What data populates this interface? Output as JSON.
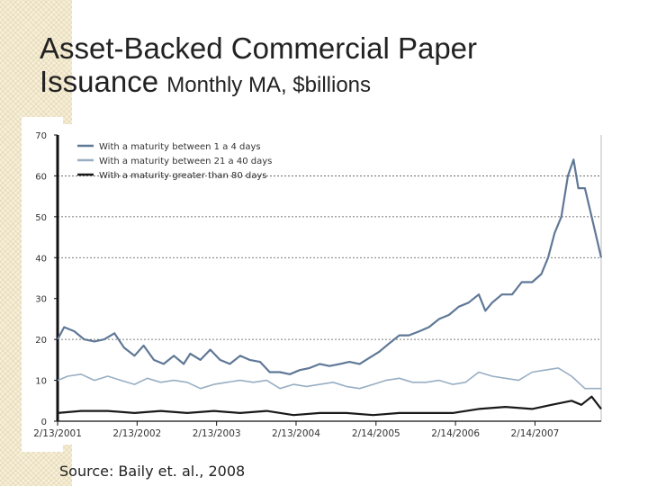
{
  "slide": {
    "title_line1": "Asset-Backed Commercial Paper",
    "title_line2_big": "Issuance",
    "title_line2_small": "Monthly MA, $billions",
    "source": "Source: Baily et. al., 2008"
  },
  "chart_data": {
    "type": "line",
    "title": "",
    "xlabel": "",
    "ylabel": "",
    "ylim": [
      0,
      70
    ],
    "yticks": [
      0,
      10,
      20,
      30,
      40,
      50,
      60,
      70
    ],
    "xlim": [
      "2001-02-13",
      "2007-12-15"
    ],
    "xticks": [
      {
        "date": "2001-02-13",
        "label": "2/13/2001"
      },
      {
        "date": "2002-02-13",
        "label": "2/13/2002"
      },
      {
        "date": "2003-02-13",
        "label": "2/13/2003"
      },
      {
        "date": "2004-02-13",
        "label": "2/13/2004"
      },
      {
        "date": "2005-02-14",
        "label": "2/14/2005"
      },
      {
        "date": "2006-02-14",
        "label": "2/14/2006"
      },
      {
        "date": "2007-02-14",
        "label": "2/14/2007"
      }
    ],
    "grid": {
      "dashed_y_at": [
        20,
        40,
        50,
        60
      ]
    },
    "legend_position": "top-left",
    "series": [
      {
        "name": "With a maturity between 1 a 4 days",
        "color": "#5f7896",
        "points": [
          [
            "2001-02-13",
            20
          ],
          [
            "2001-03-15",
            23
          ],
          [
            "2001-05-01",
            22
          ],
          [
            "2001-06-15",
            20
          ],
          [
            "2001-08-01",
            19.5
          ],
          [
            "2001-09-15",
            20
          ],
          [
            "2001-11-01",
            21.5
          ],
          [
            "2001-12-15",
            18
          ],
          [
            "2002-02-01",
            16
          ],
          [
            "2002-03-15",
            18.5
          ],
          [
            "2002-05-01",
            15
          ],
          [
            "2002-06-15",
            14
          ],
          [
            "2002-08-01",
            16
          ],
          [
            "2002-09-15",
            14
          ],
          [
            "2002-10-15",
            16.5
          ],
          [
            "2002-12-01",
            15
          ],
          [
            "2003-01-15",
            17.5
          ],
          [
            "2003-03-01",
            15
          ],
          [
            "2003-04-15",
            14
          ],
          [
            "2003-06-01",
            16
          ],
          [
            "2003-07-15",
            15
          ],
          [
            "2003-09-01",
            14.5
          ],
          [
            "2003-10-15",
            12
          ],
          [
            "2003-12-01",
            12
          ],
          [
            "2004-01-15",
            11.5
          ],
          [
            "2004-03-01",
            12.5
          ],
          [
            "2004-04-15",
            13
          ],
          [
            "2004-06-01",
            14
          ],
          [
            "2004-07-15",
            13.5
          ],
          [
            "2004-09-01",
            14
          ],
          [
            "2004-10-15",
            14.5
          ],
          [
            "2004-12-01",
            14
          ],
          [
            "2005-01-15",
            15.5
          ],
          [
            "2005-03-01",
            17
          ],
          [
            "2005-04-15",
            19
          ],
          [
            "2005-06-01",
            21
          ],
          [
            "2005-07-15",
            21
          ],
          [
            "2005-09-01",
            22
          ],
          [
            "2005-10-15",
            23
          ],
          [
            "2005-12-01",
            25
          ],
          [
            "2006-01-15",
            26
          ],
          [
            "2006-03-01",
            28
          ],
          [
            "2006-04-15",
            29
          ],
          [
            "2006-06-01",
            31
          ],
          [
            "2006-07-01",
            27
          ],
          [
            "2006-08-01",
            29
          ],
          [
            "2006-09-15",
            31
          ],
          [
            "2006-11-01",
            31
          ],
          [
            "2006-12-15",
            34
          ],
          [
            "2007-02-01",
            34
          ],
          [
            "2007-03-15",
            36
          ],
          [
            "2007-04-15",
            40
          ],
          [
            "2007-05-15",
            46
          ],
          [
            "2007-06-15",
            50
          ],
          [
            "2007-07-15",
            60
          ],
          [
            "2007-08-10",
            64
          ],
          [
            "2007-09-01",
            57
          ],
          [
            "2007-10-01",
            57
          ],
          [
            "2007-11-01",
            50
          ],
          [
            "2007-12-15",
            40
          ]
        ]
      },
      {
        "name": "With a maturity between 21 a 40 days",
        "color": "#98aec3",
        "points": [
          [
            "2001-02-13",
            10
          ],
          [
            "2001-04-01",
            11
          ],
          [
            "2001-06-01",
            11.5
          ],
          [
            "2001-08-01",
            10
          ],
          [
            "2001-10-01",
            11
          ],
          [
            "2001-12-01",
            10
          ],
          [
            "2002-02-01",
            9
          ],
          [
            "2002-04-01",
            10.5
          ],
          [
            "2002-06-01",
            9.5
          ],
          [
            "2002-08-01",
            10
          ],
          [
            "2002-10-01",
            9.5
          ],
          [
            "2002-12-01",
            8
          ],
          [
            "2003-02-01",
            9
          ],
          [
            "2003-04-01",
            9.5
          ],
          [
            "2003-06-01",
            10
          ],
          [
            "2003-08-01",
            9.5
          ],
          [
            "2003-10-01",
            10
          ],
          [
            "2003-12-01",
            8
          ],
          [
            "2004-02-01",
            9
          ],
          [
            "2004-04-01",
            8.5
          ],
          [
            "2004-06-01",
            9
          ],
          [
            "2004-08-01",
            9.5
          ],
          [
            "2004-10-01",
            8.5
          ],
          [
            "2004-12-01",
            8
          ],
          [
            "2005-02-01",
            9
          ],
          [
            "2005-04-01",
            10
          ],
          [
            "2005-06-01",
            10.5
          ],
          [
            "2005-08-01",
            9.5
          ],
          [
            "2005-10-01",
            9.5
          ],
          [
            "2005-12-01",
            10
          ],
          [
            "2006-02-01",
            9
          ],
          [
            "2006-04-01",
            9.5
          ],
          [
            "2006-06-01",
            12
          ],
          [
            "2006-08-01",
            11
          ],
          [
            "2006-10-01",
            10.5
          ],
          [
            "2006-12-01",
            10
          ],
          [
            "2007-02-01",
            12
          ],
          [
            "2007-04-01",
            12.5
          ],
          [
            "2007-06-01",
            13
          ],
          [
            "2007-08-01",
            11
          ],
          [
            "2007-10-01",
            8
          ],
          [
            "2007-12-15",
            8
          ]
        ]
      },
      {
        "name": "With a maturity greater than 80 days",
        "color": "#1a1a1a",
        "points": [
          [
            "2001-02-13",
            2
          ],
          [
            "2001-06-01",
            2.5
          ],
          [
            "2001-10-01",
            2.5
          ],
          [
            "2002-02-01",
            2
          ],
          [
            "2002-06-01",
            2.5
          ],
          [
            "2002-10-01",
            2
          ],
          [
            "2003-02-01",
            2.5
          ],
          [
            "2003-06-01",
            2
          ],
          [
            "2003-10-01",
            2.5
          ],
          [
            "2004-02-01",
            1.5
          ],
          [
            "2004-06-01",
            2
          ],
          [
            "2004-10-01",
            2
          ],
          [
            "2005-02-01",
            1.5
          ],
          [
            "2005-06-01",
            2
          ],
          [
            "2005-10-01",
            2
          ],
          [
            "2006-02-01",
            2
          ],
          [
            "2006-06-01",
            3
          ],
          [
            "2006-10-01",
            3.5
          ],
          [
            "2007-02-01",
            3
          ],
          [
            "2007-05-01",
            4
          ],
          [
            "2007-08-01",
            5
          ],
          [
            "2007-09-15",
            4
          ],
          [
            "2007-11-01",
            6
          ],
          [
            "2007-12-15",
            3
          ]
        ]
      }
    ]
  }
}
